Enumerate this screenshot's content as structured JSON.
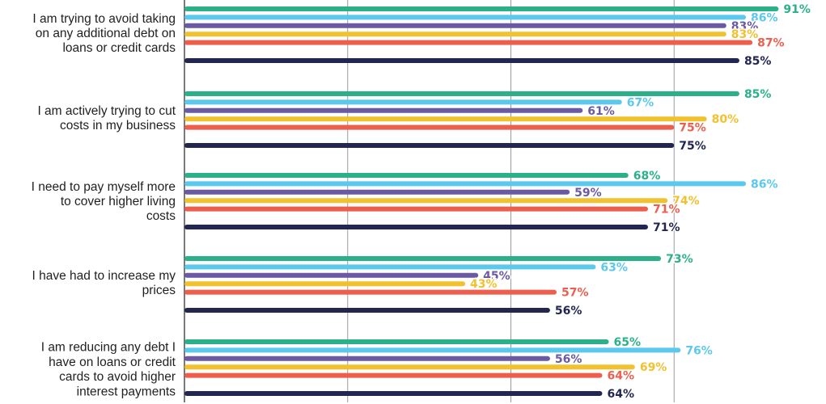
{
  "chart_data": {
    "type": "bar",
    "orientation": "horizontal",
    "categories": [
      "I am trying to avoid taking on any additional debt on loans or credit cards",
      "I am actively trying to cut costs in my business",
      "I need to pay myself more to cover higher living costs",
      "I have had to increase my prices",
      "I am reducing any debt I have on loans or credit cards to avoid higher interest payments"
    ],
    "category_lines": [
      [
        "I am trying to avoid taking",
        "on any additional debt on",
        "loans or credit cards"
      ],
      [
        "I am actively trying to cut",
        "costs in my business"
      ],
      [
        "I need to pay myself more",
        "to cover higher living",
        "costs"
      ],
      [
        "I have had to increase my",
        "prices"
      ],
      [
        "I am reducing any debt I",
        "have on loans or credit",
        "cards to avoid higher",
        "interest payments"
      ]
    ],
    "series": [
      {
        "color": "#2bb089",
        "values": [
          91,
          85,
          68,
          73,
          65
        ]
      },
      {
        "color": "#5bc8ee",
        "values": [
          86,
          67,
          86,
          63,
          76
        ]
      },
      {
        "color": "#6a59a3",
        "values": [
          83,
          61,
          59,
          45,
          56
        ]
      },
      {
        "color": "#f2c12e",
        "values": [
          83,
          80,
          74,
          43,
          69
        ]
      },
      {
        "color": "#ee5e4d",
        "values": [
          87,
          75,
          71,
          57,
          64
        ]
      },
      {
        "color": "#232750",
        "values": [
          85,
          75,
          71,
          56,
          64
        ]
      }
    ],
    "value_suffix": "%",
    "xlim": [
      0,
      100
    ],
    "gridlines": [
      25,
      50,
      75
    ],
    "grid": true,
    "legend": "none"
  }
}
